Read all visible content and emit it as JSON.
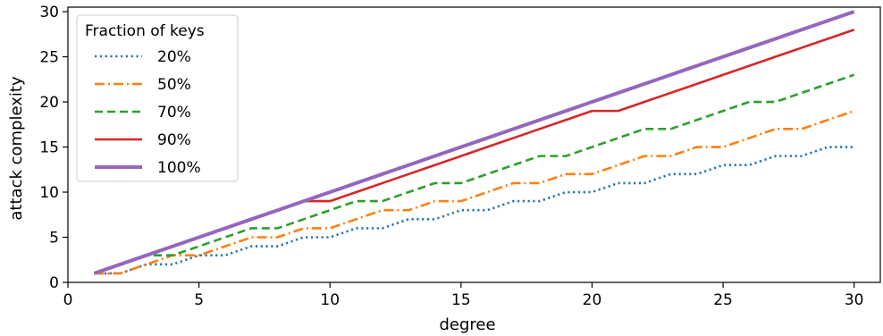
{
  "chart_data": {
    "type": "line",
    "title": "",
    "xlabel": "degree",
    "ylabel": "attack complexity",
    "xlim": [
      0,
      31
    ],
    "ylim": [
      0,
      30.5
    ],
    "xticks": [
      0,
      5,
      10,
      15,
      20,
      25,
      30
    ],
    "yticks": [
      0,
      5,
      10,
      15,
      20,
      25,
      30
    ],
    "grid": false,
    "legend": {
      "title": "Fraction of keys",
      "placement": "top-left"
    },
    "x": [
      1,
      2,
      3,
      4,
      5,
      6,
      7,
      8,
      9,
      10,
      11,
      12,
      13,
      14,
      15,
      16,
      17,
      18,
      19,
      20,
      21,
      22,
      23,
      24,
      25,
      26,
      27,
      28,
      29,
      30
    ],
    "series": [
      {
        "name": "20%",
        "color": "#1f77b4",
        "style": "dotted",
        "values": [
          1,
          1,
          2,
          2,
          3,
          3,
          4,
          4,
          5,
          5,
          6,
          6,
          7,
          7,
          8,
          8,
          9,
          9,
          10,
          10,
          11,
          11,
          12,
          12,
          13,
          13,
          14,
          14,
          15,
          15
        ]
      },
      {
        "name": "50%",
        "color": "#ff7f0e",
        "style": "dashdot",
        "values": [
          1,
          1,
          2,
          3,
          3,
          4,
          5,
          5,
          6,
          6,
          7,
          8,
          8,
          9,
          9,
          10,
          11,
          11,
          12,
          12,
          13,
          14,
          14,
          15,
          15,
          16,
          17,
          17,
          18,
          19
        ]
      },
      {
        "name": "70%",
        "color": "#2ca02c",
        "style": "dashed",
        "values": [
          1,
          2,
          3,
          3,
          4,
          5,
          6,
          6,
          7,
          8,
          9,
          9,
          10,
          11,
          11,
          12,
          13,
          14,
          14,
          15,
          16,
          17,
          17,
          18,
          19,
          20,
          20,
          21,
          22,
          23
        ]
      },
      {
        "name": "90%",
        "color": "#d62728",
        "style": "solid",
        "values": [
          1,
          2,
          3,
          4,
          5,
          6,
          7,
          8,
          9,
          9,
          10,
          11,
          12,
          13,
          14,
          15,
          16,
          17,
          18,
          19,
          19,
          20,
          21,
          22,
          23,
          24,
          25,
          26,
          27,
          28
        ]
      },
      {
        "name": "100%",
        "color": "#9467bd",
        "style": "solid-thick",
        "values": [
          1,
          2,
          3,
          4,
          5,
          6,
          7,
          8,
          9,
          10,
          11,
          12,
          13,
          14,
          15,
          16,
          17,
          18,
          19,
          20,
          21,
          22,
          23,
          24,
          25,
          26,
          27,
          28,
          29,
          30
        ]
      }
    ]
  }
}
